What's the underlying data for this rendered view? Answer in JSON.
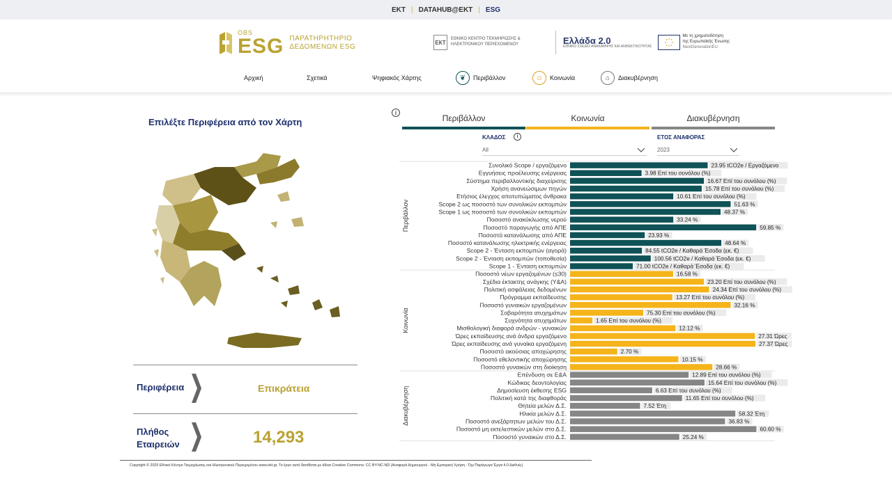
{
  "topbar": {
    "links": [
      "ΕΚΤ",
      "DATAHUB@EKT",
      "ESG"
    ]
  },
  "logo": {
    "obs": "OBS",
    "esg": "ESG",
    "subtitle_1": "ΠΑΡΑΤΗΡΗΤΗΡΙΟ",
    "subtitle_2": "ΔΕΔΟΜΕΝΩΝ ESG"
  },
  "partners": {
    "ekt_mark": "ЕКТ",
    "ekt_text": "ΕΘΝΙΚΟ ΚΕΝΤΡΟ ΤΕΚΜΗΡΙΩΣΗΣ & ΗΛΕΚΤΡΟΝΙΚΟΥ ΠΕΡΙΕΧΟΜΕΝΟΥ",
    "greece20": "Ελλάδα 2.0",
    "greece20_sub": "ΕΘΝΙΚΟ ΣΧΕΔΙΟ ΑΝΑΚΑΜΨΗΣ ΚΑΙ ΑΝΘΕΚΤΙΚΟΤΗΤΑΣ",
    "eu_text_1": "Με τη χρηματοδότηση",
    "eu_text_2": "της Ευρωπαϊκής Ένωσης",
    "eu_text_3": "NextGenerationEU"
  },
  "nav": {
    "home": "Αρχική",
    "about": "Σχετικά",
    "digital_map": "Ψηφιακός Χάρτης",
    "environment": "Περιβάλλον",
    "society": "Κοινωνία",
    "governance": "Διακυβέρνηση"
  },
  "left": {
    "title": "Επιλέξτε Περιφέρεια από τον Χάρτη",
    "region_label": "Περιφέρεια",
    "region_value": "Επικράτεια",
    "companies_label_1": "Πλήθος",
    "companies_label_2": "Εταιρειών",
    "companies_value": "14,293"
  },
  "tabs": {
    "environment": "Περιβάλλον",
    "society": "Κοινωνία",
    "governance": "Διακυβέρνηση"
  },
  "filters": {
    "sector_label": "ΚΛΑΔΟΣ",
    "sector_value": "All",
    "year_label": "ΕΤΟΣ ΑΝΑΦΟΡΑΣ",
    "year_value": "2023",
    "info_glyph": "i"
  },
  "colors": {
    "navy": "#1c2f6b",
    "gold": "#b9a232",
    "environment": "#0f5257",
    "society": "#f4b41a",
    "governance": "#868686"
  },
  "chart_data": {
    "type": "bar",
    "orientation": "horizontal",
    "groups": [
      {
        "name": "Περιβάλλον",
        "color": "#0f5257",
        "bars": [
          {
            "label": "Συνολικό Scope / εργαζόμενο",
            "value": 23.95,
            "display": "23.95 tCO2e / Εργαζόμενο",
            "level": 0.737
          },
          {
            "label": "Εγγυήσεις προέλευσης ενέργειας",
            "value": 3.98,
            "display": "3.98 Επί του συνόλου (%)",
            "level": 0.383
          },
          {
            "label": "Σύστημα περιβαλλοντικής διαχείρισης",
            "value": 16.67,
            "display": "16.67 Επί του συνόλου (%)",
            "level": 0.717
          },
          {
            "label": "Χρήση ανανεώσιμων πηγών",
            "value": 15.78,
            "display": "15.78 Επί του συνόλου (%)",
            "level": 0.705
          },
          {
            "label": "Ετήσιος έλεγχος αποτυπώματος άνθρακα",
            "value": 10.61,
            "display": "10.61 Επί του συνόλου (%)",
            "level": 0.553
          },
          {
            "label": "Scope 2 ως ποσοστό των συνολικών εκπομπών",
            "value": 51.63,
            "display": "51.63 %",
            "level": 0.86
          },
          {
            "label": "Scope 1 ως ποσοστό των συνολικών εκπομπών",
            "value": 48.37,
            "display": "48.37 %",
            "level": 0.806
          },
          {
            "label": "Ποσοστό ανακύκλωσης νερού",
            "value": 33.24,
            "display": "33.24 %",
            "level": 0.553
          },
          {
            "label": "Ποσοστό παραγωγής από ΑΠΕ",
            "value": 59.85,
            "display": "59.85 %",
            "level": 0.997
          },
          {
            "label": "Ποσοστό κατανάλωσης από ΑΠΕ",
            "value": 23.93,
            "display": "23.93 %",
            "level": 0.4
          },
          {
            "label": "Ποσοστό κατανάλωσης ηλεκτρικής ενέργειας",
            "value": 48.64,
            "display": "48.64 %",
            "level": 0.81
          },
          {
            "label": "Scope 2 - Ένταση εκπομπών (αγορά)",
            "value": 84.55,
            "display": "84.55 tCO2e / Καθαρά Έσοδα (εκ. €)",
            "level": 0.385
          },
          {
            "label": "Scope 2 - Ένταση εκπομπών (τοποθεσία)",
            "value": 100.56,
            "display": "100.56 tCO2e / Καθαρά Έσοδα (εκ. €)",
            "level": 0.432
          },
          {
            "label": "Scope 1 - Ένταση εκπομπών",
            "value": 71.0,
            "display": "71.00 tCO2e / Καθαρά Έσοδα (εκ. €)",
            "level": 0.336
          }
        ]
      },
      {
        "name": "Κοινωνία",
        "color": "#f4b41a",
        "bars": [
          {
            "label": "Ποσοστό νέων εργαζομένων (≤30)",
            "value": 16.58,
            "display": "16.58 %",
            "level": 0.552
          },
          {
            "label": "Σχέδια έκτακτης ανάγκης (Υ&Α)",
            "value": 23.2,
            "display": "23.20 Επί του συνόλου (%)",
            "level": 0.717
          },
          {
            "label": "Πολιτική ασφάλειας δεδομένων",
            "value": 24.34,
            "display": "24.34 Επί του συνόλου (%)",
            "level": 0.745
          },
          {
            "label": "Πρόγραμμα εκπαίδευσης",
            "value": 13.27,
            "display": "13.27 Επί του συνόλου (%)",
            "level": 0.548
          },
          {
            "label": "Ποσοστό γυναικών εργαζομένων",
            "value": 32.16,
            "display": "32.16 %",
            "level": 0.86
          },
          {
            "label": "Σοβαρότητα ατυχημάτων",
            "value": 75.3,
            "display": "75.30 Επί του συνόλου (%)",
            "level": 0.392
          },
          {
            "label": "Συχνότητα ατυχημάτων",
            "value": 1.65,
            "display": "1.65 Επί του συνόλου (%)",
            "level": 0.12
          },
          {
            "label": "Μισθολογική διαφορά ανδρών - γυναικών",
            "value": 12.12,
            "display": "12.12 %",
            "level": 0.565
          },
          {
            "label": "Ώρες εκπαίδευσης ανά άνδρα εργαζόμενο",
            "value": 27.31,
            "display": "27.31 Ώρες",
            "level": 0.99
          },
          {
            "label": "Ώρες εκπαίδευσης ανά γυναίκα εργαζόμενη",
            "value": 27.37,
            "display": "27.37 Ώρες",
            "level": 0.993
          },
          {
            "label": "Ποσοστό ακούσιας αποχώρησης",
            "value": 2.7,
            "display": "2.70 %",
            "level": 0.253
          },
          {
            "label": "Ποσοστό εθελοντικής αποχώρησης",
            "value": 10.15,
            "display": "10.15 %",
            "level": 0.58
          },
          {
            "label": "Ποσοστό γυναικών στη διοίκηση",
            "value": 28.66,
            "display": "28.66 %",
            "level": 0.762
          }
        ]
      },
      {
        "name": "Διακυβέρνηση",
        "color": "#868686",
        "bars": [
          {
            "label": "Επένδυση σε Ε&Α",
            "value": 12.89,
            "display": "12.89 Επί του συνόλου (%)",
            "level": 0.635
          },
          {
            "label": "Κώδικας δεοντολογίας",
            "value": 15.64,
            "display": "15.64 Επί του συνόλου (%)",
            "level": 0.72
          },
          {
            "label": "Δημοσίευση έκθεσης ESG",
            "value": 6.63,
            "display": "6.63 Επί του συνόλου (%)",
            "level": 0.44
          },
          {
            "label": "Πολιτική κατά της διαφθοράς",
            "value": 11.65,
            "display": "11.65 Επί του συνόλου (%)",
            "level": 0.6
          },
          {
            "label": "Θητεία μελών Δ.Σ.",
            "value": 7.52,
            "display": "7.52 Έτη",
            "level": 0.375
          },
          {
            "label": "Ηλικία μελών Δ.Σ.",
            "value": 58.32,
            "display": "58.32 Έτη",
            "level": 0.885
          },
          {
            "label": "Ποσοστό ανεξάρτητων μελών του Δ.Σ.",
            "value": 36.83,
            "display": "36.83 %",
            "level": 0.83
          },
          {
            "label": "Ποσοστό μη εκτελεστικών μελών στο Δ.Σ.",
            "value": 60.6,
            "display": "60.60 %",
            "level": 0.998
          },
          {
            "label": "Ποσοστό γυναικών στο Δ.Σ.",
            "value": 25.24,
            "display": "25.24 %",
            "level": 0.585
          }
        ]
      }
    ]
  },
  "footer": {
    "text": "Copyright ©  2025  Εθνικό Κέντρο Τεκμηρίωσης και Ηλεκτρονικού Περιεχομένου www.ekt.gr. Το έργο αυτό διατίθεται με άδεια Creative Commons: CC  BY-NC-ND (Αναφορά Δημιουργού - Μη Εμπορική Χρήση - Όχι Παράγωγα Έργα 4.0 Διεθνές)"
  }
}
